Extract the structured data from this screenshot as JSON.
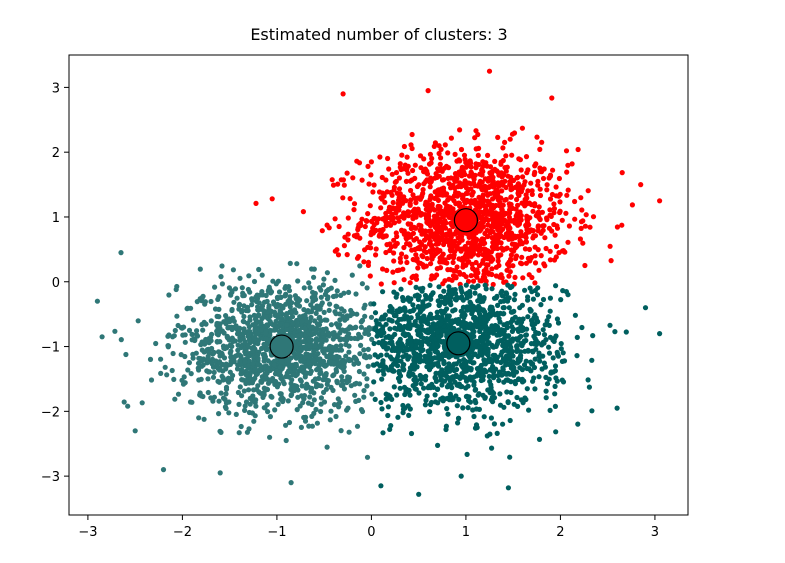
{
  "chart_data": {
    "type": "scatter",
    "title": "Estimated number of clusters: 3",
    "xlabel": "",
    "ylabel": "",
    "xlim": [
      -3.2,
      3.35
    ],
    "ylim": [
      -3.6,
      3.5
    ],
    "x_ticks": [
      -3,
      -2,
      -1,
      0,
      1,
      2,
      3
    ],
    "y_ticks": [
      -3,
      -2,
      -1,
      0,
      1,
      2,
      3
    ],
    "x_tick_labels": [
      "−3",
      "−2",
      "−1",
      "0",
      "1",
      "2",
      "3"
    ],
    "y_tick_labels": [
      "−3",
      "−2",
      "−1",
      "0",
      "1",
      "2",
      "3"
    ],
    "grid": false,
    "legend": "none",
    "clusters": [
      {
        "color": "#ff0000",
        "center": [
          1.0,
          0.95
        ],
        "spread": [
          0.55,
          0.55
        ],
        "n_points": 1400,
        "region": "y>0-upper",
        "outliers": [
          [
            -1.05,
            1.28
          ],
          [
            1.25,
            3.25
          ],
          [
            0.6,
            2.95
          ],
          [
            3.05,
            1.25
          ],
          [
            2.85,
            1.5
          ],
          [
            -0.3,
            2.9
          ]
        ]
      },
      {
        "color": "#2f7777",
        "center": [
          -0.95,
          -1.0
        ],
        "spread": [
          0.55,
          0.5
        ],
        "n_points": 1400,
        "region": "left-of-boundary",
        "outliers": [
          [
            -2.65,
            0.45
          ],
          [
            -2.9,
            -0.3
          ],
          [
            -2.85,
            -0.85
          ],
          [
            -2.2,
            -2.9
          ],
          [
            -0.85,
            -3.1
          ],
          [
            -1.6,
            -2.95
          ],
          [
            -2.5,
            -2.3
          ]
        ]
      },
      {
        "color": "#005f5f",
        "center": [
          0.9,
          -0.95
        ],
        "spread": [
          0.55,
          0.5
        ],
        "n_points": 1400,
        "region": "right-of-boundary",
        "outliers": [
          [
            0.95,
            -3.0
          ],
          [
            0.5,
            -3.28
          ],
          [
            0.1,
            -3.15
          ],
          [
            1.45,
            -3.18
          ],
          [
            3.05,
            -0.8
          ],
          [
            2.9,
            -0.4
          ],
          [
            2.6,
            -1.95
          ]
        ]
      }
    ],
    "centroids": [
      {
        "x": 1.0,
        "y": 0.95
      },
      {
        "x": -0.95,
        "y": -1.0
      },
      {
        "x": 0.92,
        "y": -0.95
      }
    ]
  }
}
